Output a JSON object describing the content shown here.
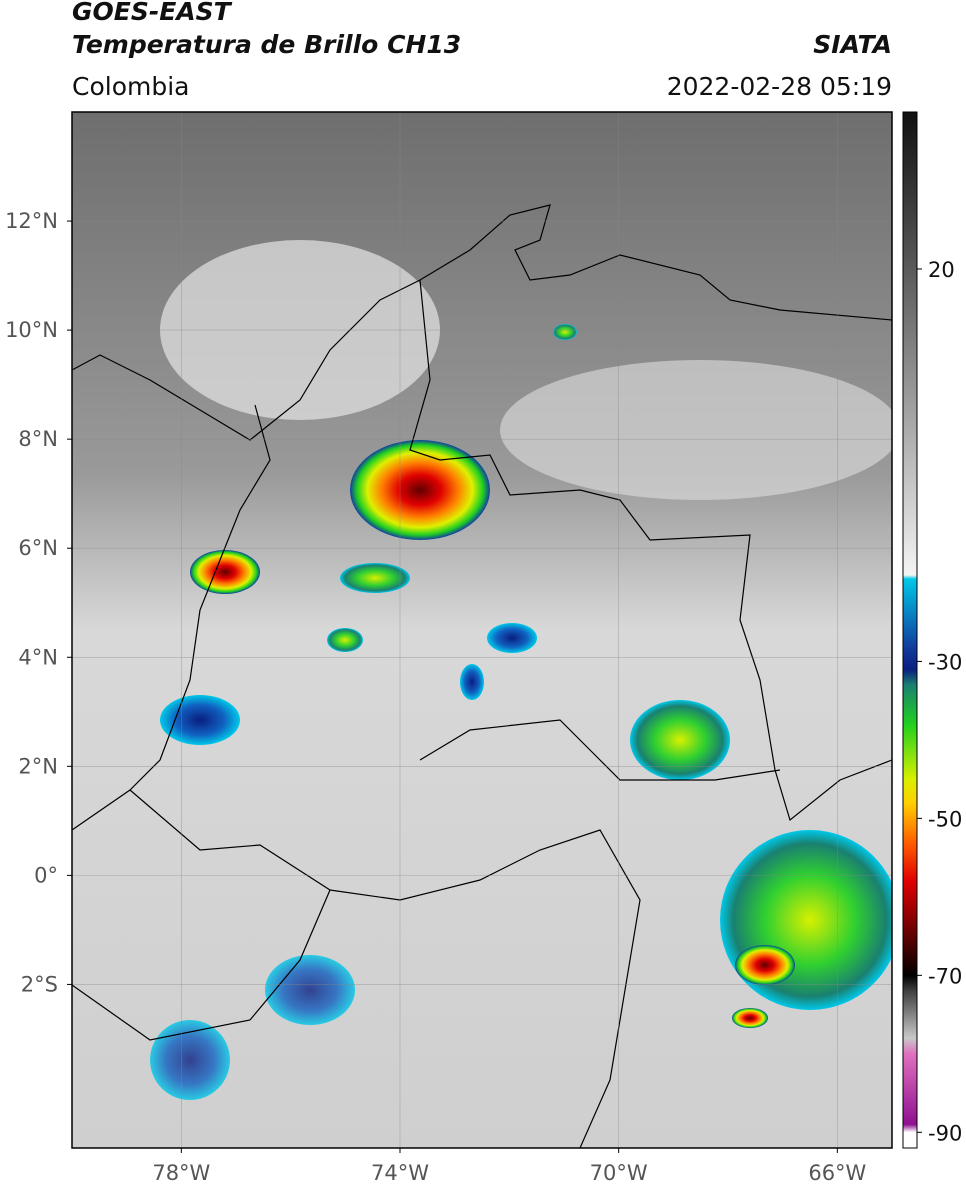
{
  "header": {
    "title": "GOES-EAST",
    "subtitle": "Temperatura de Brillo CH13",
    "source": "SIATA",
    "region": "Colombia",
    "timestamp": "2022-02-28 05:19"
  },
  "map": {
    "xlim": [
      -80,
      -65
    ],
    "ylim": [
      -5,
      14
    ],
    "grid": true,
    "xticks": [
      {
        "value": -78,
        "label": "78°W"
      },
      {
        "value": -74,
        "label": "74°W"
      },
      {
        "value": -70,
        "label": "70°W"
      },
      {
        "value": -66,
        "label": "66°W"
      }
    ],
    "yticks": [
      {
        "value": 12,
        "label": "12°N"
      },
      {
        "value": 10,
        "label": "10°N"
      },
      {
        "value": 8,
        "label": "8°N"
      },
      {
        "value": 6,
        "label": "6°N"
      },
      {
        "value": 4,
        "label": "4°N"
      },
      {
        "value": 2,
        "label": "2°N"
      },
      {
        "value": 0,
        "label": "0°"
      },
      {
        "value": -2,
        "label": "2°S"
      }
    ]
  },
  "colorbar": {
    "clim": [
      -92,
      40
    ],
    "ticks": [
      20,
      -30,
      -50,
      -70,
      -90
    ],
    "colormap": [
      {
        "value": 40,
        "color": "#111111"
      },
      {
        "value": 20,
        "color": "#5a5a5a"
      },
      {
        "value": -19,
        "color": "#f4f4f4"
      },
      {
        "value": -19.5,
        "color": "#00c8e8"
      },
      {
        "value": -28,
        "color": "#1040a0"
      },
      {
        "value": -31,
        "color": "#0a1e80"
      },
      {
        "value": -33,
        "color": "#1a8070"
      },
      {
        "value": -38,
        "color": "#20d020"
      },
      {
        "value": -45,
        "color": "#d8f000"
      },
      {
        "value": -48,
        "color": "#ffd000"
      },
      {
        "value": -53,
        "color": "#ff6000"
      },
      {
        "value": -58,
        "color": "#e00000"
      },
      {
        "value": -65,
        "color": "#600000"
      },
      {
        "value": -70,
        "color": "#000000"
      },
      {
        "value": -72,
        "color": "#404040"
      },
      {
        "value": -78,
        "color": "#c8c8c8"
      },
      {
        "value": -80,
        "color": "#e070c0"
      },
      {
        "value": -89,
        "color": "#901090"
      },
      {
        "value": -90,
        "color": "#ffffff"
      },
      {
        "value": -92,
        "color": "#ffffff"
      }
    ]
  }
}
